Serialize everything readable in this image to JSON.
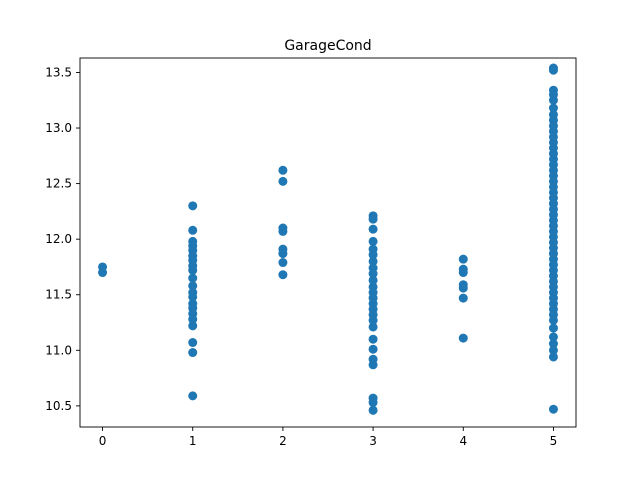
{
  "chart_data": {
    "type": "scatter",
    "title": "GarageCond",
    "xlabel": "",
    "ylabel": "",
    "xlim": [
      -0.25,
      5.25
    ],
    "ylim": [
      10.31,
      13.63
    ],
    "xticks": [
      0,
      1,
      2,
      3,
      4,
      5
    ],
    "yticks": [
      10.5,
      11.0,
      11.5,
      12.0,
      12.5,
      13.0,
      13.5
    ],
    "ytick_labels": [
      "10.5",
      "11.0",
      "11.5",
      "12.0",
      "12.5",
      "13.0",
      "13.5"
    ],
    "grid": false,
    "marker_color": "#1f77b4",
    "series": [
      {
        "points": [
          {
            "x": 0,
            "y": 11.75
          },
          {
            "x": 0,
            "y": 11.7
          },
          {
            "x": 1,
            "y": 12.3
          },
          {
            "x": 1,
            "y": 12.08
          },
          {
            "x": 1,
            "y": 11.98
          },
          {
            "x": 1,
            "y": 11.94
          },
          {
            "x": 1,
            "y": 11.9
          },
          {
            "x": 1,
            "y": 11.85
          },
          {
            "x": 1,
            "y": 11.81
          },
          {
            "x": 1,
            "y": 11.76
          },
          {
            "x": 1,
            "y": 11.72
          },
          {
            "x": 1,
            "y": 11.65
          },
          {
            "x": 1,
            "y": 11.58
          },
          {
            "x": 1,
            "y": 11.52
          },
          {
            "x": 1,
            "y": 11.48
          },
          {
            "x": 1,
            "y": 11.42
          },
          {
            "x": 1,
            "y": 11.38
          },
          {
            "x": 1,
            "y": 11.33
          },
          {
            "x": 1,
            "y": 11.28
          },
          {
            "x": 1,
            "y": 11.22
          },
          {
            "x": 1,
            "y": 11.07
          },
          {
            "x": 1,
            "y": 10.98
          },
          {
            "x": 1,
            "y": 10.59
          },
          {
            "x": 2,
            "y": 12.62
          },
          {
            "x": 2,
            "y": 12.52
          },
          {
            "x": 2,
            "y": 12.1
          },
          {
            "x": 2,
            "y": 12.07
          },
          {
            "x": 2,
            "y": 11.91
          },
          {
            "x": 2,
            "y": 11.87
          },
          {
            "x": 2,
            "y": 11.79
          },
          {
            "x": 2,
            "y": 11.68
          },
          {
            "x": 3,
            "y": 12.21
          },
          {
            "x": 3,
            "y": 12.18
          },
          {
            "x": 3,
            "y": 12.09
          },
          {
            "x": 3,
            "y": 11.98
          },
          {
            "x": 3,
            "y": 11.91
          },
          {
            "x": 3,
            "y": 11.86
          },
          {
            "x": 3,
            "y": 11.8
          },
          {
            "x": 3,
            "y": 11.74
          },
          {
            "x": 3,
            "y": 11.69
          },
          {
            "x": 3,
            "y": 11.63
          },
          {
            "x": 3,
            "y": 11.57
          },
          {
            "x": 3,
            "y": 11.52
          },
          {
            "x": 3,
            "y": 11.47
          },
          {
            "x": 3,
            "y": 11.42
          },
          {
            "x": 3,
            "y": 11.37
          },
          {
            "x": 3,
            "y": 11.32
          },
          {
            "x": 3,
            "y": 11.27
          },
          {
            "x": 3,
            "y": 11.21
          },
          {
            "x": 3,
            "y": 11.1
          },
          {
            "x": 3,
            "y": 11.01
          },
          {
            "x": 3,
            "y": 10.92
          },
          {
            "x": 3,
            "y": 10.87
          },
          {
            "x": 3,
            "y": 10.57
          },
          {
            "x": 3,
            "y": 10.53
          },
          {
            "x": 3,
            "y": 10.46
          },
          {
            "x": 4,
            "y": 11.82
          },
          {
            "x": 4,
            "y": 11.73
          },
          {
            "x": 4,
            "y": 11.7
          },
          {
            "x": 4,
            "y": 11.59
          },
          {
            "x": 4,
            "y": 11.56
          },
          {
            "x": 4,
            "y": 11.47
          },
          {
            "x": 4,
            "y": 11.11
          },
          {
            "x": 5,
            "y": 13.54
          },
          {
            "x": 5,
            "y": 13.52
          },
          {
            "x": 5,
            "y": 13.34
          },
          {
            "x": 5,
            "y": 13.3
          },
          {
            "x": 5,
            "y": 13.25
          },
          {
            "x": 5,
            "y": 13.18
          },
          {
            "x": 5,
            "y": 13.12
          },
          {
            "x": 5,
            "y": 13.07
          },
          {
            "x": 5,
            "y": 13.02
          },
          {
            "x": 5,
            "y": 12.97
          },
          {
            "x": 5,
            "y": 12.92
          },
          {
            "x": 5,
            "y": 12.87
          },
          {
            "x": 5,
            "y": 12.82
          },
          {
            "x": 5,
            "y": 12.77
          },
          {
            "x": 5,
            "y": 12.72
          },
          {
            "x": 5,
            "y": 12.67
          },
          {
            "x": 5,
            "y": 12.62
          },
          {
            "x": 5,
            "y": 12.57
          },
          {
            "x": 5,
            "y": 12.52
          },
          {
            "x": 5,
            "y": 12.47
          },
          {
            "x": 5,
            "y": 12.42
          },
          {
            "x": 5,
            "y": 12.37
          },
          {
            "x": 5,
            "y": 12.32
          },
          {
            "x": 5,
            "y": 12.27
          },
          {
            "x": 5,
            "y": 12.22
          },
          {
            "x": 5,
            "y": 12.17
          },
          {
            "x": 5,
            "y": 12.12
          },
          {
            "x": 5,
            "y": 12.07
          },
          {
            "x": 5,
            "y": 12.02
          },
          {
            "x": 5,
            "y": 11.97
          },
          {
            "x": 5,
            "y": 11.92
          },
          {
            "x": 5,
            "y": 11.87
          },
          {
            "x": 5,
            "y": 11.82
          },
          {
            "x": 5,
            "y": 11.77
          },
          {
            "x": 5,
            "y": 11.72
          },
          {
            "x": 5,
            "y": 11.67
          },
          {
            "x": 5,
            "y": 11.62
          },
          {
            "x": 5,
            "y": 11.57
          },
          {
            "x": 5,
            "y": 11.52
          },
          {
            "x": 5,
            "y": 11.47
          },
          {
            "x": 5,
            "y": 11.42
          },
          {
            "x": 5,
            "y": 11.37
          },
          {
            "x": 5,
            "y": 11.32
          },
          {
            "x": 5,
            "y": 11.27
          },
          {
            "x": 5,
            "y": 11.2
          },
          {
            "x": 5,
            "y": 11.12
          },
          {
            "x": 5,
            "y": 11.06
          },
          {
            "x": 5,
            "y": 11.0
          },
          {
            "x": 5,
            "y": 10.94
          },
          {
            "x": 5,
            "y": 10.47
          }
        ]
      }
    ]
  }
}
